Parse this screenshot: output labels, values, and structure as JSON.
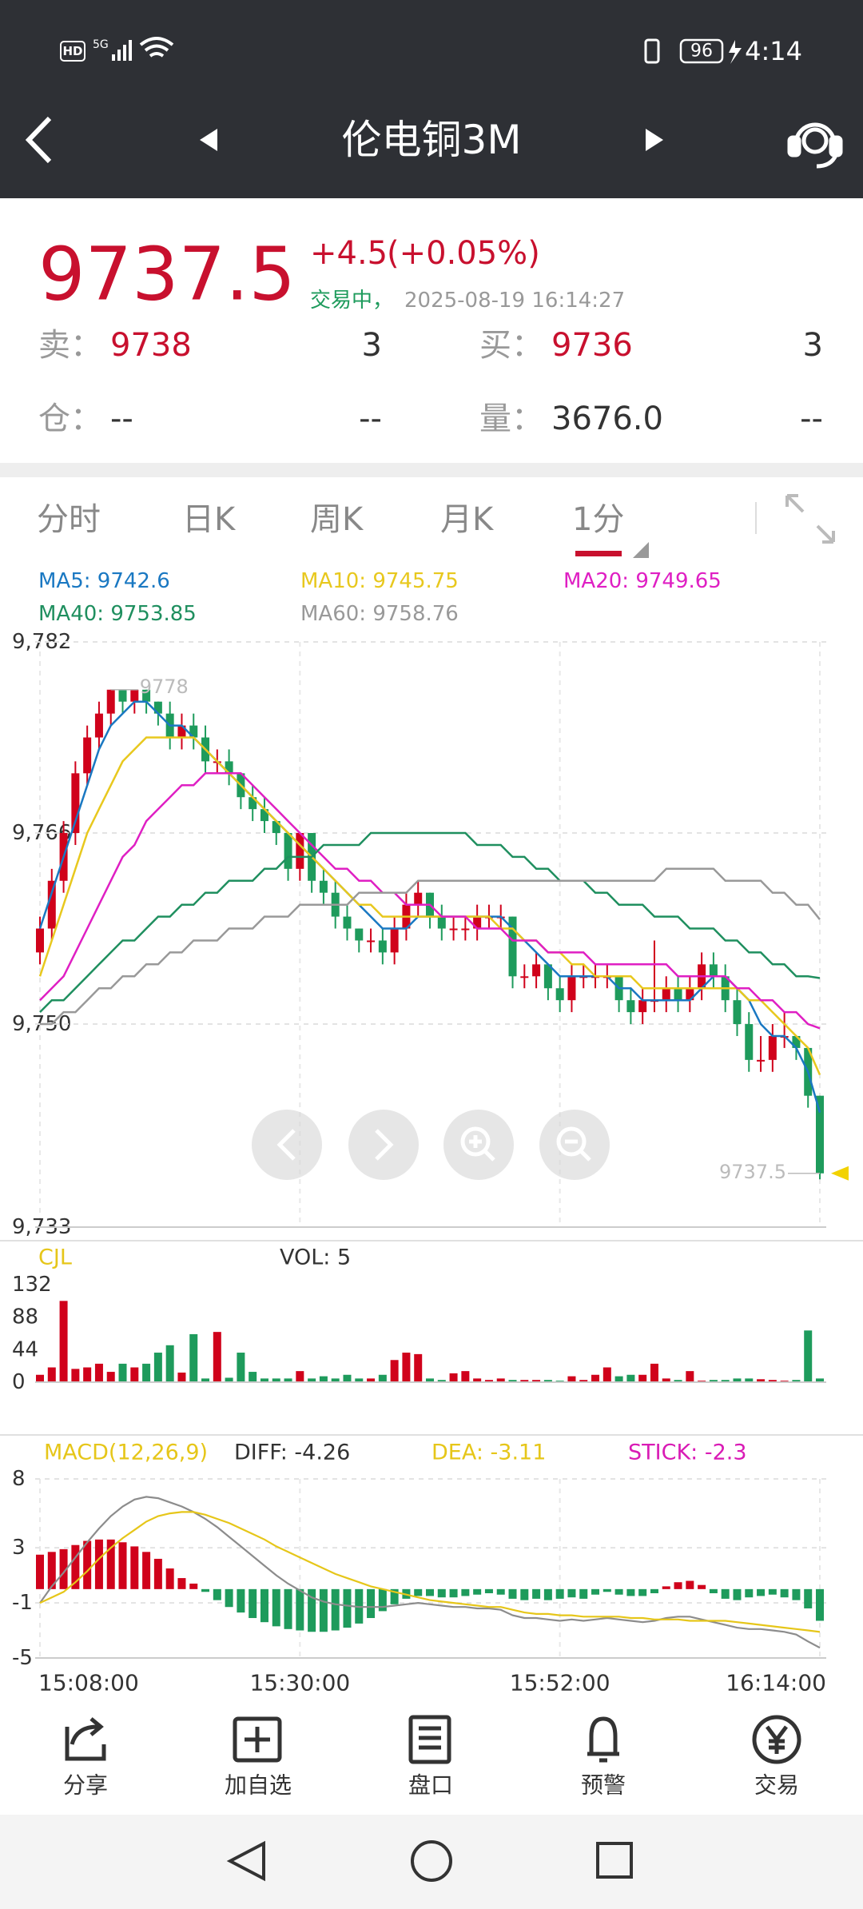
{
  "status_bar": {
    "hd": "HD",
    "network": "5G",
    "battery": "96",
    "time": "4:14"
  },
  "header": {
    "title": "伦电铜3M"
  },
  "quote": {
    "price": "9737.5",
    "change": "+4.5",
    "change_pct": "(+0.05%)",
    "status": "交易中，",
    "timestamp": "2025-08-19 16:14:27",
    "rows": [
      [
        "卖：",
        "9738",
        "3",
        "买：",
        "9736",
        "3"
      ],
      [
        "仓：",
        "--",
        "--",
        "量：",
        "3676.0",
        "--"
      ]
    ]
  },
  "tabs": [
    "分时",
    "日K",
    "周K",
    "月K",
    "1分"
  ],
  "chart_data": [
    {
      "type": "candlestick",
      "open": [
        9756,
        9758,
        9762,
        9766,
        9771,
        9774,
        9776,
        9778,
        9777,
        9778,
        9777,
        9776,
        9774,
        9775,
        9774,
        9772,
        9772,
        9771,
        9769,
        9768,
        9767,
        9766,
        9763,
        9766,
        9762,
        9761,
        9759,
        9758,
        9757,
        9757,
        9756,
        9758,
        9760,
        9761,
        9759,
        9758,
        9758,
        9758,
        9759,
        9759,
        9759,
        9754,
        9754,
        9755,
        9753,
        9752,
        9754,
        9754,
        9754,
        9754,
        9752,
        9751,
        9752,
        9752,
        9753,
        9752,
        9753,
        9755,
        9754,
        9752,
        9750,
        9747,
        9747,
        9749,
        9749,
        9748,
        9744
      ],
      "high": [
        9759,
        9763,
        9767,
        9772,
        9775,
        9777,
        9778,
        9778,
        9778,
        9778,
        9777,
        9777,
        9776,
        9776,
        9775,
        9773,
        9773,
        9771,
        9770,
        9769,
        9767,
        9766,
        9766,
        9766,
        9763,
        9762,
        9760,
        9758,
        9758,
        9758,
        9759,
        9761,
        9762,
        9761,
        9760,
        9759,
        9759,
        9760,
        9760,
        9760,
        9759,
        9755,
        9756,
        9755,
        9754,
        9755,
        9755,
        9755,
        9755,
        9754,
        9753,
        9753,
        9757,
        9754,
        9754,
        9754,
        9756,
        9756,
        9755,
        9753,
        9751,
        9749,
        9750,
        9751,
        9749,
        9748,
        9744
      ],
      "low": [
        9755,
        9757,
        9761,
        9765,
        9770,
        9773,
        9775,
        9776,
        9776,
        9776,
        9775,
        9773,
        9773,
        9773,
        9771,
        9771,
        9770,
        9768,
        9767,
        9766,
        9765,
        9762,
        9762,
        9761,
        9760,
        9758,
        9757,
        9756,
        9756,
        9755,
        9755,
        9757,
        9759,
        9758,
        9757,
        9757,
        9757,
        9757,
        9758,
        9758,
        9753,
        9753,
        9753,
        9752,
        9751,
        9751,
        9753,
        9753,
        9753,
        9751,
        9750,
        9750,
        9751,
        9751,
        9751,
        9751,
        9752,
        9753,
        9751,
        9749,
        9746,
        9746,
        9746,
        9748,
        9747,
        9743,
        9737
      ],
      "close": [
        9758,
        9762,
        9766,
        9771,
        9774,
        9776,
        9778,
        9777,
        9778,
        9777,
        9776,
        9774,
        9775,
        9774,
        9772,
        9772,
        9771,
        9769,
        9768,
        9767,
        9766,
        9763,
        9766,
        9762,
        9761,
        9759,
        9758,
        9757,
        9757,
        9756,
        9758,
        9760,
        9761,
        9759,
        9758,
        9758,
        9758,
        9759,
        9759,
        9759,
        9754,
        9754,
        9755,
        9753,
        9752,
        9754,
        9754,
        9754,
        9754,
        9752,
        9751,
        9752,
        9752,
        9753,
        9752,
        9753,
        9755,
        9754,
        9752,
        9750,
        9747,
        9747,
        9749,
        9749,
        9748,
        9744,
        9737.5
      ],
      "series": [
        {
          "name": "MA5: 9742.6",
          "color": "#1a78c2",
          "values": [
            9758,
            9761,
            9764,
            9767,
            9770,
            9773,
            9775,
            9776,
            9777,
            9777,
            9776,
            9775,
            9775,
            9774,
            9773,
            9772,
            9771,
            9770,
            9769,
            9768,
            9767,
            9766,
            9765,
            9764,
            9763,
            9762,
            9761,
            9760,
            9759,
            9758,
            9758,
            9758,
            9759,
            9759,
            9759,
            9759,
            9759,
            9759,
            9759,
            9759,
            9758,
            9757,
            9756,
            9755,
            9754,
            9754,
            9754,
            9754,
            9754,
            9753,
            9753,
            9752,
            9752,
            9752,
            9752,
            9752,
            9753,
            9754,
            9754,
            9753,
            9752,
            9750,
            9749,
            9749,
            9748,
            9746,
            9742.6
          ]
        },
        {
          "name": "MA10: 9745.75",
          "color": "#e8c81e",
          "values": [
            9754,
            9757,
            9760,
            9763,
            9766,
            9768,
            9770,
            9772,
            9773,
            9774,
            9774,
            9774,
            9774,
            9774,
            9773,
            9772,
            9771,
            9770,
            9769,
            9768,
            9767,
            9766,
            9765,
            9764,
            9763,
            9762,
            9761,
            9760,
            9760,
            9759,
            9759,
            9759,
            9759,
            9759,
            9759,
            9759,
            9759,
            9759,
            9759,
            9758,
            9758,
            9757,
            9757,
            9756,
            9756,
            9755,
            9755,
            9754,
            9754,
            9754,
            9754,
            9753,
            9753,
            9753,
            9753,
            9753,
            9753,
            9753,
            9753,
            9753,
            9752,
            9752,
            9751,
            9750,
            9749,
            9748,
            9745.75
          ]
        },
        {
          "name": "MA20: 9749.65",
          "color": "#df1fc3",
          "values": [
            9752,
            9753,
            9754,
            9756,
            9758,
            9760,
            9762,
            9764,
            9765,
            9767,
            9768,
            9769,
            9770,
            9770,
            9771,
            9771,
            9771,
            9771,
            9770,
            9769,
            9768,
            9767,
            9766,
            9765,
            9764,
            9763,
            9763,
            9762,
            9762,
            9761,
            9761,
            9760,
            9760,
            9760,
            9759,
            9759,
            9759,
            9758,
            9758,
            9758,
            9757,
            9757,
            9757,
            9756,
            9756,
            9756,
            9756,
            9755,
            9755,
            9755,
            9755,
            9755,
            9755,
            9755,
            9754,
            9754,
            9754,
            9754,
            9754,
            9753,
            9753,
            9752,
            9752,
            9751,
            9751,
            9750,
            9749.65
          ]
        },
        {
          "name": "MA40: 9753.85",
          "color": "#1f8f5f",
          "values": [
            9751,
            9752,
            9752,
            9753,
            9754,
            9755,
            9756,
            9757,
            9757,
            9758,
            9759,
            9759,
            9760,
            9760,
            9761,
            9761,
            9762,
            9762,
            9762,
            9763,
            9763,
            9764,
            9764,
            9764,
            9765,
            9765,
            9765,
            9765,
            9766,
            9766,
            9766,
            9766,
            9766,
            9766,
            9766,
            9766,
            9766,
            9765,
            9765,
            9765,
            9764,
            9764,
            9763,
            9763,
            9762,
            9762,
            9762,
            9761,
            9761,
            9760,
            9760,
            9760,
            9759,
            9759,
            9759,
            9758,
            9758,
            9758,
            9757,
            9757,
            9756,
            9756,
            9755,
            9755,
            9754,
            9754,
            9753.85
          ]
        },
        {
          "name": "MA60: 9758.76",
          "color": "#999999",
          "values": [
            9750,
            9750,
            9751,
            9751,
            9752,
            9753,
            9753,
            9754,
            9754,
            9755,
            9755,
            9756,
            9756,
            9757,
            9757,
            9757,
            9758,
            9758,
            9758,
            9759,
            9759,
            9759,
            9760,
            9760,
            9760,
            9760,
            9760,
            9761,
            9761,
            9761,
            9761,
            9761,
            9762,
            9762,
            9762,
            9762,
            9762,
            9762,
            9762,
            9762,
            9762,
            9762,
            9762,
            9762,
            9762,
            9762,
            9762,
            9762,
            9762,
            9762,
            9762,
            9762,
            9762,
            9763,
            9763,
            9763,
            9763,
            9763,
            9762,
            9762,
            9762,
            9762,
            9761,
            9761,
            9760,
            9760,
            9758.76
          ]
        }
      ],
      "ylim": [
        9733,
        9782
      ],
      "yticks": [
        {
          "value": 9782,
          "label": "9,782"
        },
        {
          "value": 9766,
          "label": "9,766"
        },
        {
          "value": 9750,
          "label": "9,750"
        },
        {
          "value": 9733,
          "label": "9,733"
        }
      ],
      "annotations": [
        {
          "value": 9778,
          "label": "9778"
        },
        {
          "value": 9737.5,
          "label": "9737.5"
        }
      ],
      "up_color": "#d0021b",
      "down_color": "#1e9b5c",
      "grid": true
    },
    {
      "type": "bar",
      "title": "CJL",
      "subtitle": "VOL: 5",
      "values": [
        10,
        20,
        110,
        18,
        20,
        25,
        14,
        25,
        20,
        25,
        40,
        50,
        13,
        65,
        5,
        68,
        6,
        40,
        14,
        5,
        5,
        5,
        15,
        5,
        8,
        5,
        10,
        5,
        5,
        10,
        30,
        40,
        38,
        5,
        3,
        12,
        15,
        5,
        3,
        5,
        3,
        3,
        3,
        3,
        2,
        8,
        3,
        10,
        20,
        8,
        10,
        10,
        25,
        5,
        3,
        15,
        2,
        3,
        3,
        5,
        5,
        4,
        3,
        2,
        3,
        70,
        5
      ],
      "ylim": [
        0,
        132
      ],
      "yticks": [
        0,
        44,
        88,
        132
      ]
    },
    {
      "type": "macd",
      "title": "MACD(12,26,9)",
      "categories": [
        "15:08:00",
        null,
        null,
        null,
        null,
        null,
        null,
        null,
        null,
        null,
        null,
        null,
        null,
        null,
        null,
        null,
        null,
        null,
        null,
        null,
        null,
        null,
        "15:30:00",
        null,
        null,
        null,
        null,
        null,
        null,
        null,
        null,
        null,
        null,
        null,
        null,
        null,
        null,
        null,
        null,
        null,
        null,
        null,
        null,
        null,
        "15:52:00",
        null,
        null,
        null,
        null,
        null,
        null,
        null,
        null,
        null,
        null,
        null,
        null,
        null,
        null,
        null,
        null,
        null,
        null,
        null,
        null,
        null,
        "16:14:00"
      ],
      "series": [
        {
          "name": "DIFF: -4.26",
          "color": "#8c8c8c",
          "values": [
            -1.0,
            0.2,
            1.2,
            2.3,
            3.4,
            4.4,
            5.3,
            6.0,
            6.5,
            6.7,
            6.6,
            6.3,
            6.0,
            5.6,
            5.1,
            4.5,
            3.8,
            3.1,
            2.4,
            1.7,
            1.0,
            0.4,
            -0.1,
            -0.6,
            -0.9,
            -1.1,
            -1.2,
            -1.3,
            -1.3,
            -1.3,
            -1.2,
            -1.1,
            -1.0,
            -1.1,
            -1.2,
            -1.3,
            -1.3,
            -1.4,
            -1.4,
            -1.5,
            -1.9,
            -2.1,
            -2.1,
            -2.2,
            -2.3,
            -2.2,
            -2.3,
            -2.2,
            -2.1,
            -2.2,
            -2.3,
            -2.4,
            -2.3,
            -2.1,
            -2.0,
            -2.0,
            -2.2,
            -2.4,
            -2.6,
            -2.8,
            -2.9,
            -2.9,
            -3.0,
            -3.1,
            -3.3,
            -3.8,
            -4.26
          ]
        },
        {
          "name": "DEA: -3.11",
          "color": "#e6c619",
          "values": [
            -1.0,
            -0.6,
            -0.2,
            0.5,
            1.3,
            2.2,
            3.0,
            3.7,
            4.3,
            4.9,
            5.3,
            5.5,
            5.6,
            5.6,
            5.4,
            5.1,
            4.8,
            4.4,
            4.0,
            3.6,
            3.1,
            2.7,
            2.3,
            1.9,
            1.5,
            1.1,
            0.8,
            0.5,
            0.2,
            0.0,
            -0.2,
            -0.4,
            -0.6,
            -0.8,
            -0.9,
            -1.0,
            -1.1,
            -1.2,
            -1.3,
            -1.3,
            -1.5,
            -1.7,
            -1.8,
            -1.8,
            -1.9,
            -1.9,
            -2.0,
            -2.0,
            -2.0,
            -2.0,
            -2.1,
            -2.1,
            -2.2,
            -2.2,
            -2.2,
            -2.3,
            -2.3,
            -2.3,
            -2.3,
            -2.4,
            -2.5,
            -2.6,
            -2.7,
            -2.8,
            -2.9,
            -3.0,
            -3.11
          ]
        },
        {
          "name": "STICK: -2.3",
          "color": "#d91bb5",
          "style": "bar",
          "values": [
            2.5,
            2.7,
            2.9,
            3.2,
            3.5,
            3.6,
            3.6,
            3.4,
            3.1,
            2.7,
            2.2,
            1.5,
            0.8,
            0.4,
            -0.2,
            -0.8,
            -1.3,
            -1.7,
            -2.1,
            -2.4,
            -2.7,
            -2.9,
            -3.0,
            -3.1,
            -3.1,
            -3.0,
            -2.8,
            -2.5,
            -2.1,
            -1.6,
            -1.1,
            -0.7,
            -0.5,
            -0.5,
            -0.6,
            -0.6,
            -0.5,
            -0.4,
            -0.3,
            -0.4,
            -0.7,
            -0.8,
            -0.7,
            -0.8,
            -0.7,
            -0.6,
            -0.7,
            -0.4,
            -0.2,
            -0.4,
            -0.5,
            -0.5,
            -0.3,
            0.2,
            0.5,
            0.6,
            0.3,
            -0.3,
            -0.7,
            -0.8,
            -0.6,
            -0.5,
            -0.4,
            -0.6,
            -0.8,
            -1.4,
            -2.3
          ]
        }
      ],
      "ylim": [
        -5,
        8
      ],
      "yticks": [
        8,
        3,
        -1,
        -5
      ]
    }
  ],
  "toolbar": [
    "分享",
    "加自选",
    "盘口",
    "预警",
    "交易"
  ]
}
